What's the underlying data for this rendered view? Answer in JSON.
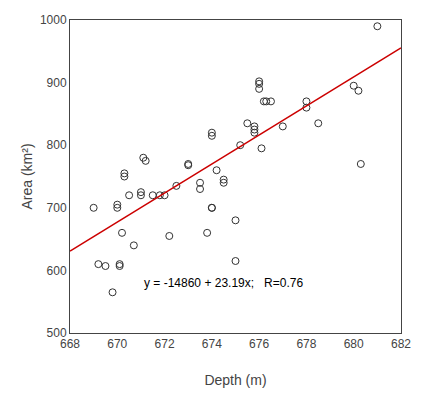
{
  "chart_data": {
    "type": "scatter",
    "xlabel": "Depth (m)",
    "ylabel": "Area (km²)",
    "annotations": [
      {
        "text": "y = -14860 + 23.19x;   R=0.76",
        "x": 674.5,
        "y": 565
      }
    ],
    "series": [
      {
        "type": "scatter",
        "marker": "circle-open",
        "color": "#333333",
        "x": [
          669.0,
          669.2,
          669.5,
          669.8,
          670.0,
          670.0,
          670.1,
          670.1,
          670.2,
          670.3,
          670.3,
          670.5,
          670.7,
          671.0,
          671.0,
          671.1,
          671.2,
          671.5,
          671.8,
          672.0,
          672.2,
          672.5,
          673.0,
          673.0,
          673.5,
          673.5,
          673.8,
          674.0,
          674.0,
          674.0,
          674.0,
          674.2,
          674.5,
          674.5,
          675.0,
          675.0,
          675.2,
          675.5,
          675.8,
          675.8,
          675.8,
          676.0,
          676.0,
          676.0,
          676.1,
          676.2,
          676.3,
          676.5,
          677.0,
          678.0,
          678.0,
          678.5,
          680.0,
          680.2,
          680.3,
          681.0
        ],
        "values": [
          700.0,
          610.0,
          607.0,
          565.0,
          700.0,
          705.0,
          610.0,
          607.0,
          660.0,
          750.0,
          755.0,
          720.0,
          640.0,
          720.0,
          725.0,
          780.0,
          775.0,
          720.0,
          720.0,
          720.0,
          655.0,
          735.0,
          770.0,
          768.0,
          740.0,
          730.0,
          660.0,
          815.0,
          820.0,
          700.0,
          700.0,
          760.0,
          745.0,
          740.0,
          615.0,
          680.0,
          800.0,
          835.0,
          830.0,
          825.0,
          820.0,
          890.0,
          898.0,
          902.0,
          795.0,
          870.0,
          870.0,
          870.0,
          830.0,
          860.0,
          870.0,
          835.0,
          895.0,
          887.0,
          770.0,
          990.0
        ]
      },
      {
        "type": "line",
        "line_style": "solid",
        "color": "#cc0000",
        "x": [
          668,
          682
        ],
        "values": [
          630.92,
          955.58
        ]
      }
    ],
    "xlim": [
      668,
      682
    ],
    "ylim": [
      500,
      1000
    ],
    "xticks": [
      668,
      670,
      672,
      674,
      676,
      678,
      680,
      682
    ],
    "yticks": [
      500,
      600,
      700,
      800,
      900,
      1000
    ],
    "grid": false
  }
}
